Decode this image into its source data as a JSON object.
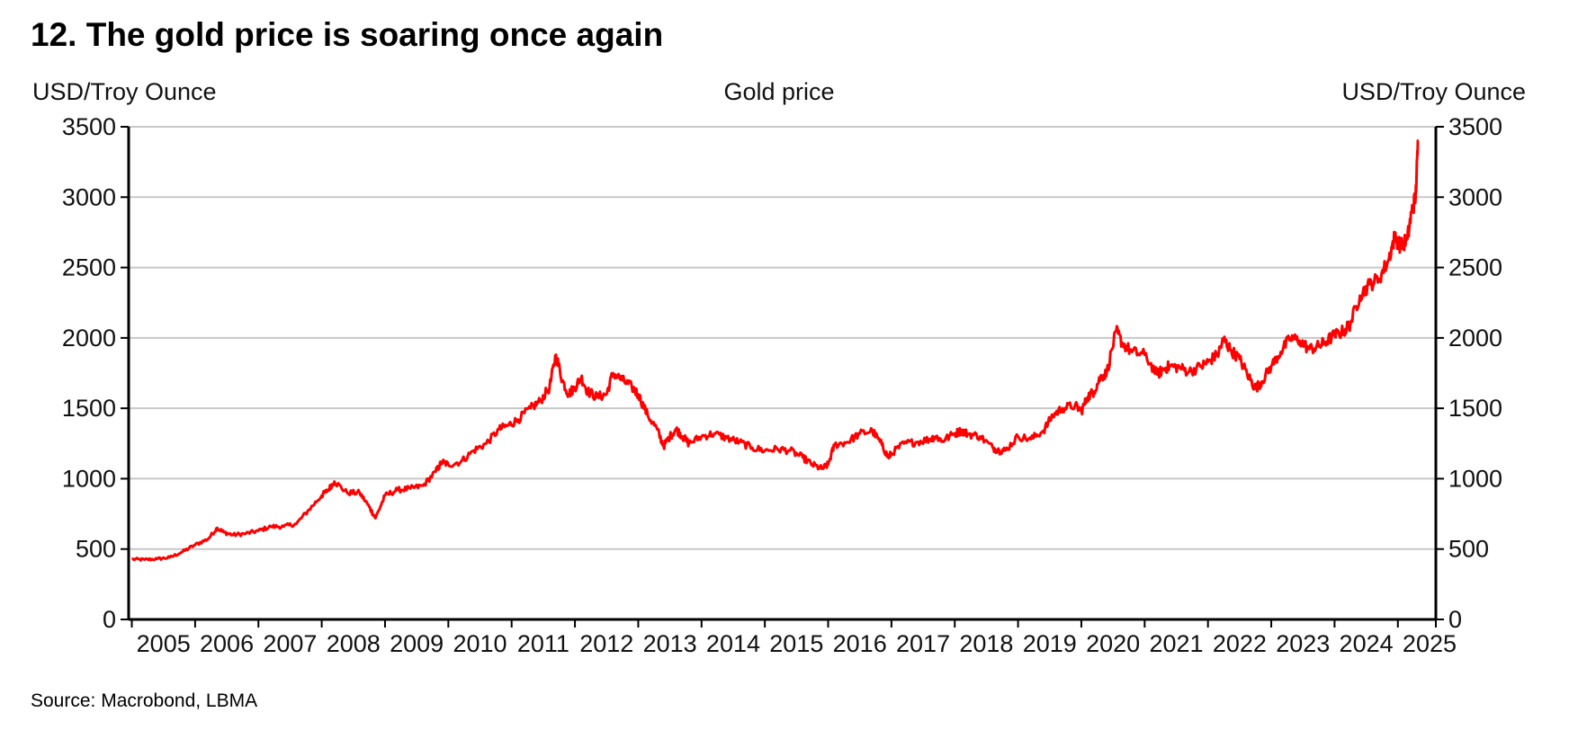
{
  "header": {
    "title": "12.  The gold price is soaring once again"
  },
  "footer": {
    "source": "Source: Macrobond, LBMA"
  },
  "chart_data": {
    "type": "line",
    "title": "Gold price",
    "ylabel_left": "USD/Troy Ounce",
    "ylabel_right": "USD/Troy Ounce",
    "xlabel": "",
    "ylim": [
      0,
      3500
    ],
    "xlim": [
      2004.95,
      2025.6
    ],
    "yticks": [
      0,
      500,
      1000,
      1500,
      2000,
      2500,
      3000,
      3500
    ],
    "xtick_labels": [
      "2005",
      "2006",
      "2007",
      "2008",
      "2009",
      "2010",
      "2011",
      "2012",
      "2013",
      "2014",
      "2015",
      "2016",
      "2017",
      "2018",
      "2019",
      "2020",
      "2021",
      "2022",
      "2023",
      "2024",
      "2025"
    ],
    "grid": true,
    "line_color": "#ff0000",
    "series": [
      {
        "name": "Gold price",
        "x": [
          2005.0,
          2005.2,
          2005.4,
          2005.6,
          2005.8,
          2006.0,
          2006.2,
          2006.35,
          2006.45,
          2006.6,
          2006.8,
          2007.0,
          2007.2,
          2007.4,
          2007.6,
          2007.8,
          2008.0,
          2008.1,
          2008.2,
          2008.4,
          2008.6,
          2008.75,
          2008.85,
          2009.0,
          2009.2,
          2009.4,
          2009.6,
          2009.8,
          2009.9,
          2010.0,
          2010.2,
          2010.4,
          2010.6,
          2010.8,
          2010.95,
          2011.1,
          2011.3,
          2011.45,
          2011.6,
          2011.7,
          2011.8,
          2011.9,
          2012.0,
          2012.1,
          2012.2,
          2012.35,
          2012.5,
          2012.6,
          2012.75,
          2012.9,
          2013.0,
          2013.15,
          2013.3,
          2013.4,
          2013.5,
          2013.6,
          2013.7,
          2013.8,
          2014.0,
          2014.2,
          2014.4,
          2014.6,
          2014.8,
          2015.0,
          2015.2,
          2015.4,
          2015.6,
          2015.75,
          2015.9,
          2016.0,
          2016.1,
          2016.3,
          2016.5,
          2016.7,
          2016.85,
          2016.95,
          2017.0,
          2017.2,
          2017.4,
          2017.6,
          2017.7,
          2017.8,
          2018.0,
          2018.1,
          2018.2,
          2018.4,
          2018.6,
          2018.7,
          2018.8,
          2019.0,
          2019.2,
          2019.4,
          2019.55,
          2019.7,
          2019.9,
          2020.0,
          2020.1,
          2020.2,
          2020.3,
          2020.4,
          2020.55,
          2020.65,
          2020.8,
          2021.0,
          2021.2,
          2021.3,
          2021.4,
          2021.55,
          2021.7,
          2021.9,
          2022.0,
          2022.15,
          2022.25,
          2022.35,
          2022.5,
          2022.65,
          2022.75,
          2022.85,
          2023.0,
          2023.15,
          2023.3,
          2023.45,
          2023.6,
          2023.75,
          2023.85,
          2024.0,
          2024.15,
          2024.25,
          2024.4,
          2024.55,
          2024.7,
          2024.85,
          2024.95,
          2025.05,
          2025.15,
          2025.22,
          2025.28,
          2025.32
        ],
        "values": [
          428,
          425,
          430,
          440,
          480,
          530,
          570,
          650,
          620,
          600,
          610,
          630,
          660,
          660,
          680,
          780,
          880,
          920,
          980,
          900,
          900,
          800,
          720,
          880,
          920,
          930,
          950,
          1050,
          1120,
          1100,
          1120,
          1200,
          1250,
          1350,
          1380,
          1420,
          1500,
          1550,
          1650,
          1880,
          1700,
          1600,
          1650,
          1720,
          1620,
          1580,
          1600,
          1750,
          1700,
          1650,
          1600,
          1450,
          1350,
          1230,
          1300,
          1350,
          1300,
          1250,
          1300,
          1320,
          1290,
          1260,
          1220,
          1200,
          1210,
          1200,
          1150,
          1100,
          1070,
          1100,
          1240,
          1260,
          1320,
          1340,
          1240,
          1150,
          1180,
          1250,
          1260,
          1280,
          1300,
          1270,
          1320,
          1340,
          1320,
          1300,
          1220,
          1200,
          1200,
          1300,
          1280,
          1340,
          1450,
          1500,
          1520,
          1480,
          1580,
          1620,
          1720,
          1750,
          2050,
          1960,
          1900,
          1880,
          1740,
          1780,
          1800,
          1790,
          1760,
          1800,
          1830,
          1880,
          1990,
          1920,
          1850,
          1720,
          1640,
          1690,
          1800,
          1900,
          2000,
          1980,
          1920,
          1940,
          1970,
          2020,
          2050,
          2100,
          2300,
          2380,
          2420,
          2550,
          2720,
          2650,
          2700,
          2900,
          3000,
          3400
        ]
      }
    ]
  }
}
